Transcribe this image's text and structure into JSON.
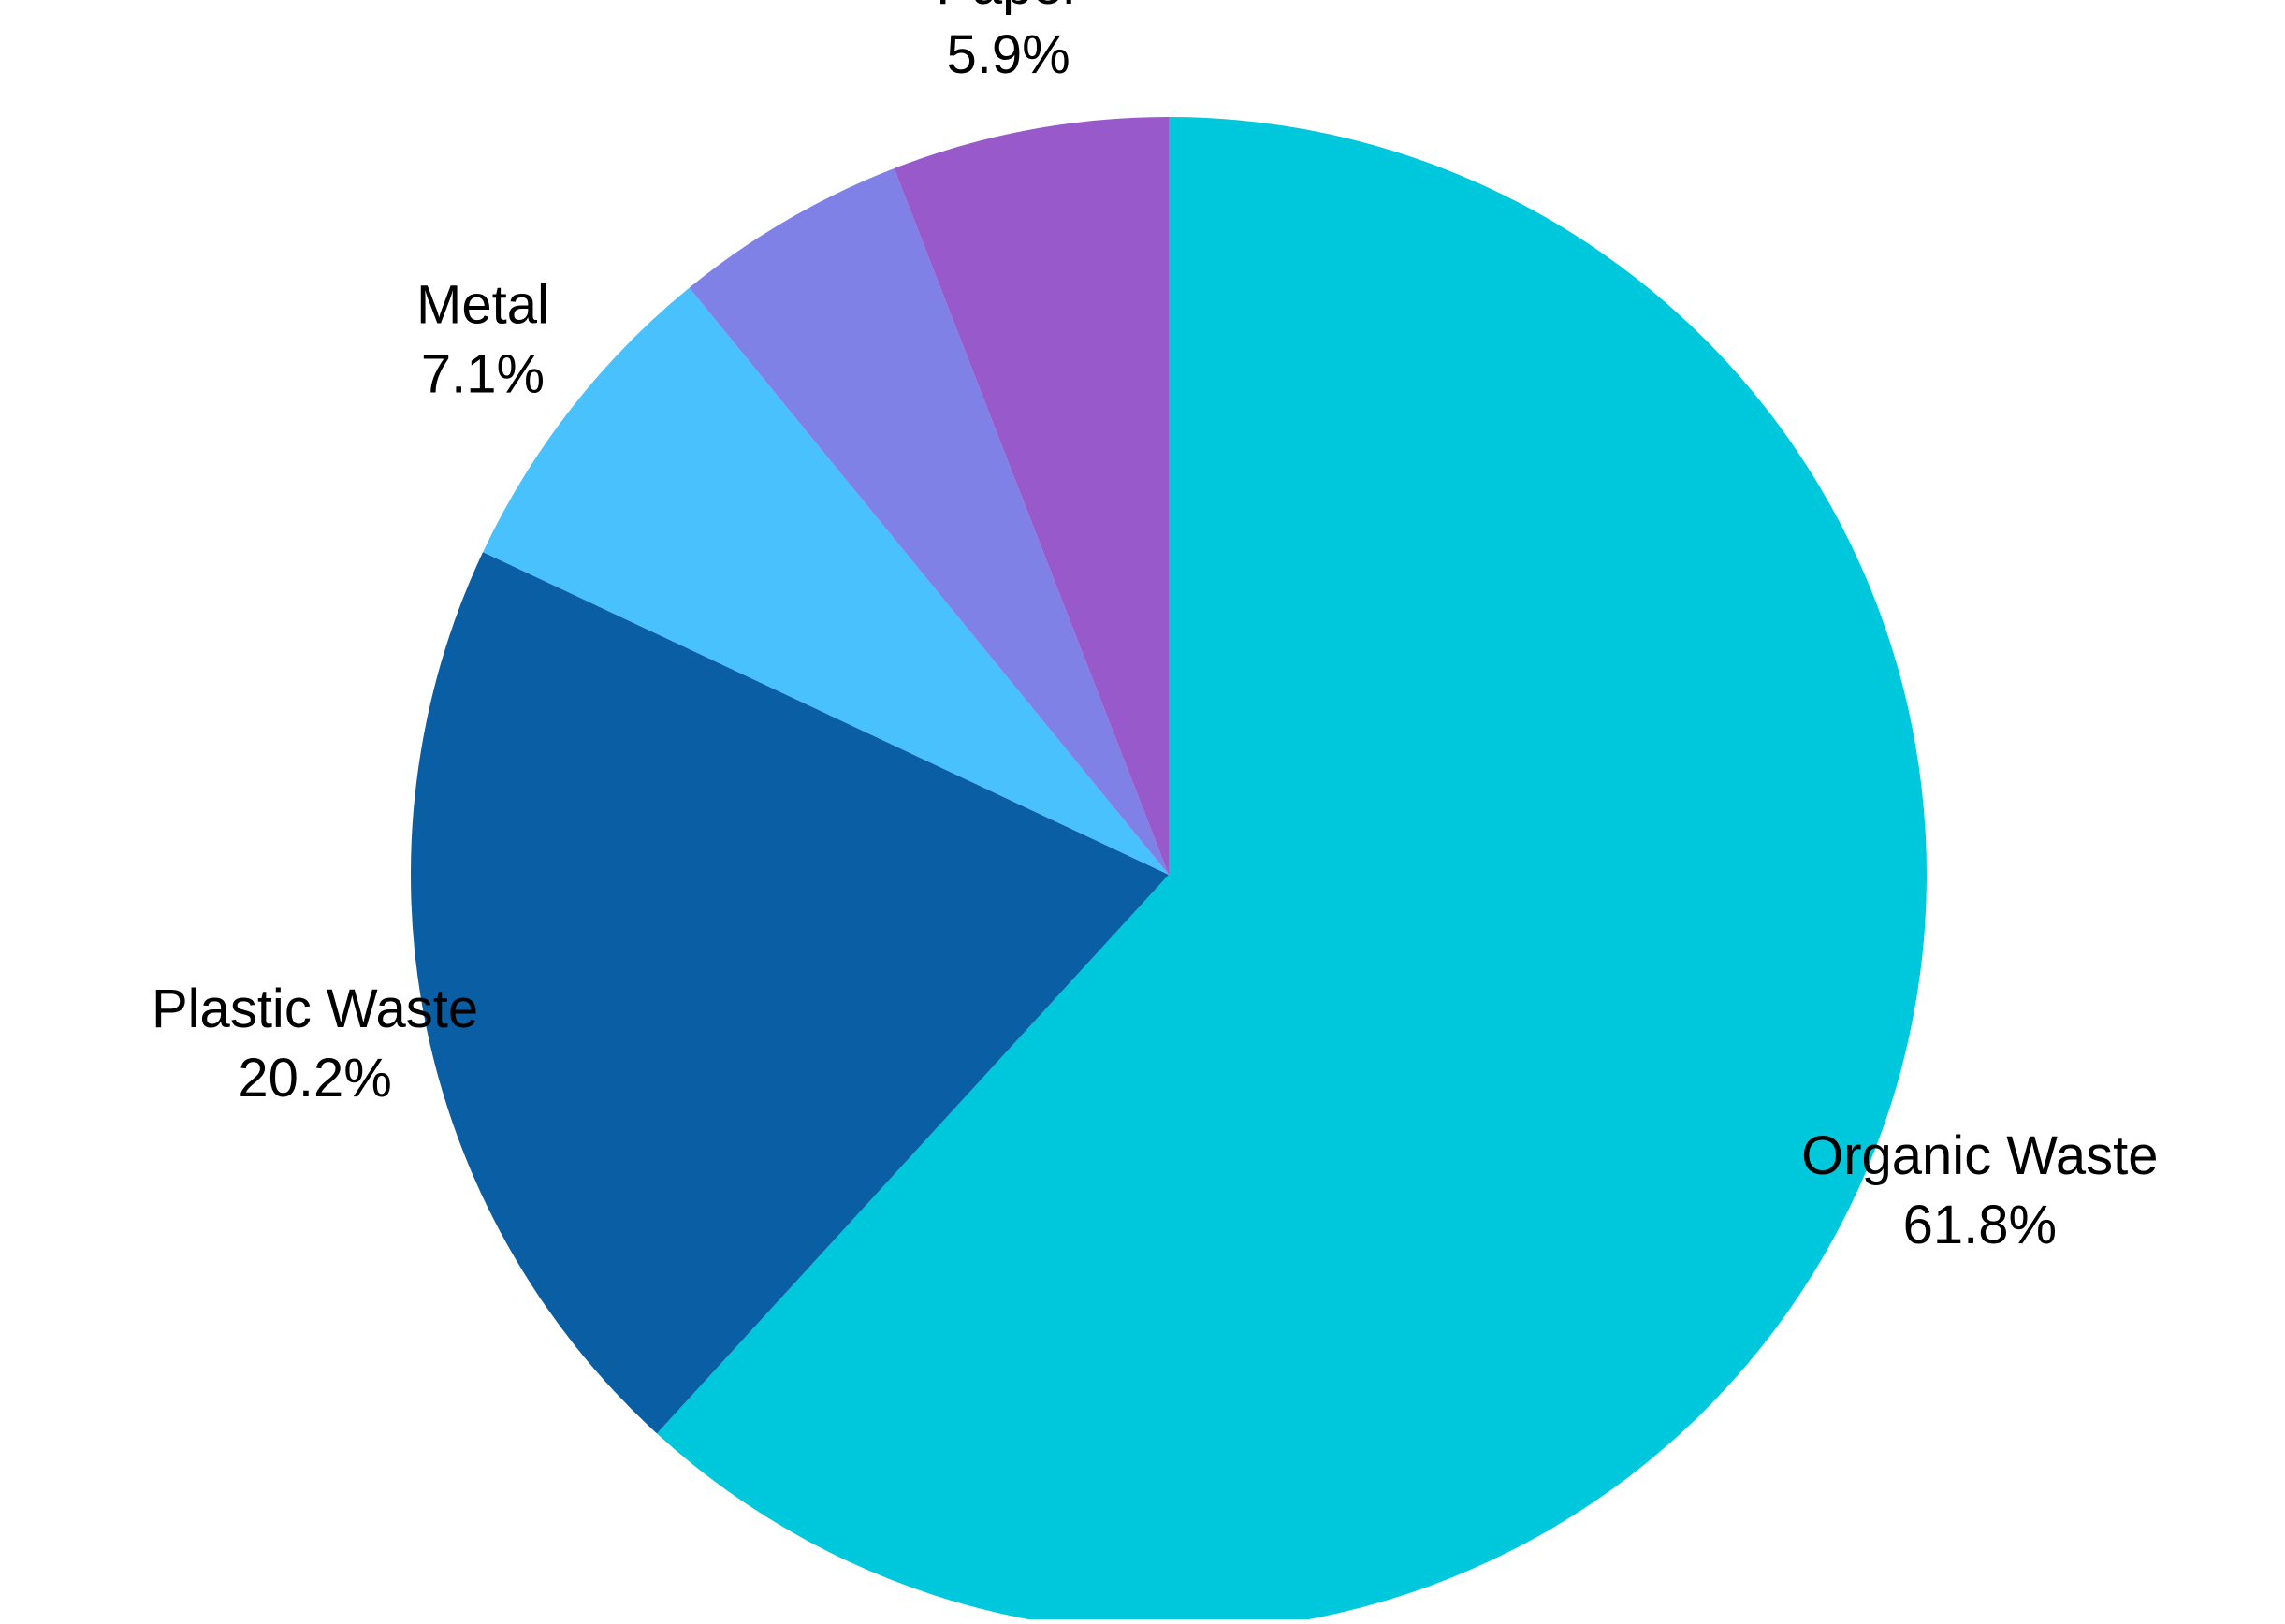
{
  "chart_data": {
    "type": "pie",
    "title": "",
    "start": "top",
    "direction": "clockwise",
    "slices": [
      {
        "label": "Organic Waste",
        "value": 61.8,
        "value_label": "61.8%",
        "color": "#00C8DC"
      },
      {
        "label": "Plastic Waste",
        "value": 20.2,
        "value_label": "20.2%",
        "color": "#0A5EA3"
      },
      {
        "label": "Metal",
        "value": 7.1,
        "value_label": "7.1%",
        "color": "#48C1FD"
      },
      {
        "label": "",
        "value": 5.0,
        "value_label": "",
        "color": "#8081E6"
      },
      {
        "label": "Paper",
        "value": 5.9,
        "value_label": "5.9%",
        "color": "#9859CB"
      }
    ]
  }
}
